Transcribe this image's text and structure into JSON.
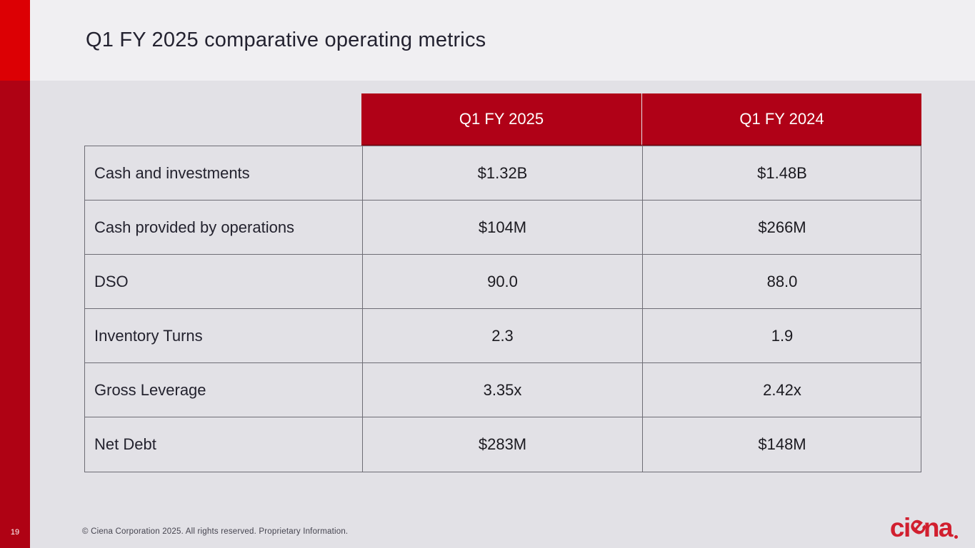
{
  "slide": {
    "title": "Q1 FY 2025 comparative operating metrics",
    "page_number": "19",
    "footer_text": "© Ciena Corporation 2025. All rights reserved. Proprietary Information.",
    "logo": {
      "part_ci": "ci",
      "part_e": "e",
      "part_na": "na"
    }
  },
  "table": {
    "columns": [
      "Q1 FY 2025",
      "Q1 FY 2024"
    ],
    "rows": [
      {
        "label": "Cash and investments",
        "q1_fy2025": "$1.32B",
        "q1_fy2024": "$1.48B"
      },
      {
        "label": "Cash provided by operations",
        "q1_fy2025": "$104M",
        "q1_fy2024": "$266M"
      },
      {
        "label": "DSO",
        "q1_fy2025": "90.0",
        "q1_fy2024": "88.0"
      },
      {
        "label": "Inventory Turns",
        "q1_fy2025": "2.3",
        "q1_fy2024": "1.9"
      },
      {
        "label": "Gross Leverage",
        "q1_fy2025": "3.35x",
        "q1_fy2024": "2.42x"
      },
      {
        "label": "Net Debt",
        "q1_fy2025": "$283M",
        "q1_fy2024": "$148M"
      }
    ]
  },
  "colors": {
    "accent_red_bright": "#DC0004",
    "accent_red_dark": "#AF0214",
    "table_header_red": "#B00117",
    "logo_red": "#D11F2F",
    "page_background": "#E2E1E6",
    "title_band_background": "#F0EFF2",
    "table_border": "#6E6D75"
  }
}
